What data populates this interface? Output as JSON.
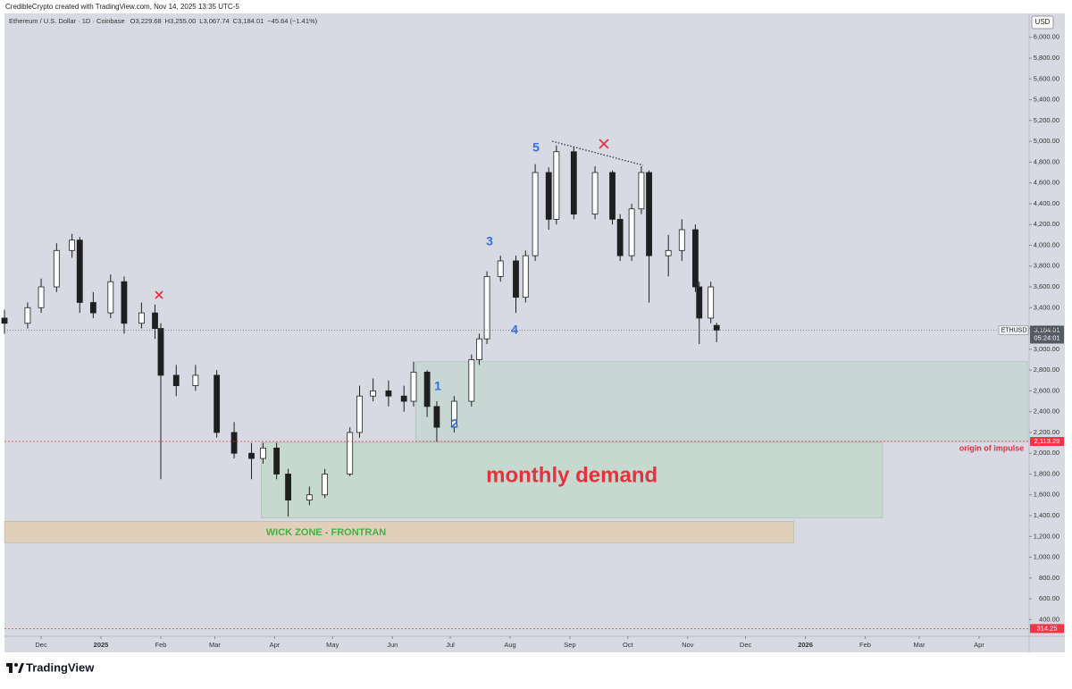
{
  "header": {
    "credit": "CredibleCrypto created with TradingView.com, Nov 14, 2025 13:35 UTC-5",
    "logo": "TradingView"
  },
  "chart_data": {
    "type": "candlestick",
    "title": "Ethereum / U.S. Dollar · 1D · Coinbase",
    "ohlc_legend": [
      "O3,229.68",
      "H3,255.00",
      "L3,067.74",
      "C3,184.01",
      "−45.64 (−1.41%)"
    ],
    "currency": "USD",
    "x": [
      -19,
      -7,
      0,
      8,
      16,
      20,
      27,
      36,
      43,
      52,
      59,
      62,
      70,
      80,
      91,
      100,
      109,
      115,
      122,
      128,
      139,
      147,
      160,
      165,
      172,
      180,
      188,
      193,
      200,
      205,
      214,
      223,
      227,
      231,
      238,
      246,
      251,
      256,
      263,
      267,
      276,
      287,
      296,
      300,
      306,
      311,
      315,
      325,
      332,
      339,
      341,
      347,
      350
    ],
    "open": [
      3300,
      3250,
      3400,
      3600,
      3950,
      4050,
      3450,
      3350,
      3650,
      3250,
      3350,
      3200,
      2750,
      2650,
      2750,
      2200,
      2000,
      1950,
      2050,
      1800,
      1550,
      1600,
      1800,
      2200,
      2550,
      2600,
      2550,
      2500,
      2780,
      2450,
      2250,
      2500,
      2900,
      3100,
      3700,
      3850,
      3500,
      3900,
      4700,
      4250,
      4900,
      4300,
      4700,
      4250,
      3900,
      4350,
      4700,
      3900,
      3950,
      4150,
      3600,
      3300,
      3229.68
    ],
    "high": [
      3380,
      3450,
      3680,
      4020,
      4110,
      4080,
      3550,
      3720,
      3700,
      3450,
      3430,
      3250,
      2850,
      2850,
      2800,
      2300,
      2100,
      2100,
      2100,
      1850,
      1680,
      1850,
      2250,
      2650,
      2720,
      2700,
      2650,
      2880,
      2800,
      2500,
      2550,
      2950,
      3150,
      3750,
      3900,
      3900,
      3950,
      4780,
      4750,
      4960,
      4950,
      4760,
      4720,
      4300,
      4400,
      4760,
      4720,
      4100,
      4250,
      4200,
      3650,
      3650,
      3255
    ],
    "low": [
      3150,
      3200,
      3350,
      3550,
      3880,
      3350,
      3300,
      3300,
      3150,
      3200,
      3100,
      1750,
      2550,
      2600,
      2150,
      1950,
      1750,
      1900,
      1750,
      1390,
      1500,
      1570,
      1780,
      2150,
      2500,
      2450,
      2400,
      2450,
      2350,
      2110,
      2200,
      2450,
      2850,
      3050,
      3650,
      3350,
      3450,
      3850,
      4150,
      4200,
      4250,
      4250,
      4200,
      3850,
      3850,
      4300,
      3450,
      3700,
      3850,
      3550,
      3050,
      3250,
      3067.74
    ],
    "close": [
      3250,
      3400,
      3600,
      3950,
      4050,
      3450,
      3350,
      3650,
      3250,
      3350,
      3200,
      2750,
      2650,
      2750,
      2200,
      2000,
      1950,
      2050,
      1800,
      1550,
      1600,
      1800,
      2200,
      2550,
      2600,
      2550,
      2500,
      2780,
      2450,
      2250,
      2500,
      2900,
      3100,
      3700,
      3850,
      3500,
      3900,
      4700,
      4250,
      4900,
      4300,
      4700,
      4250,
      3900,
      4350,
      4700,
      3900,
      3950,
      4150,
      3600,
      3300,
      3600,
      3184.01
    ],
    "up_color": "#ffffff",
    "down_color": "#1f1f1f",
    "xlim": [
      -19,
      511
    ],
    "xticks": [
      {
        "value": 0,
        "label": "Dec"
      },
      {
        "value": 31,
        "label": "2025"
      },
      {
        "value": 62,
        "label": "Feb"
      },
      {
        "value": 90,
        "label": "Mar"
      },
      {
        "value": 121,
        "label": "Apr"
      },
      {
        "value": 151,
        "label": "May"
      },
      {
        "value": 182,
        "label": "Jun"
      },
      {
        "value": 212,
        "label": "Jul"
      },
      {
        "value": 243,
        "label": "Aug"
      },
      {
        "value": 274,
        "label": "Sep"
      },
      {
        "value": 304,
        "label": "Oct"
      },
      {
        "value": 335,
        "label": "Nov"
      },
      {
        "value": 365,
        "label": "Dec"
      },
      {
        "value": 396,
        "label": "2026"
      },
      {
        "value": 427,
        "label": "Feb"
      },
      {
        "value": 455,
        "label": "Mar"
      },
      {
        "value": 486,
        "label": "Apr"
      }
    ],
    "ylim": [
      240,
      6230
    ],
    "yticks": [
      {
        "value": 400,
        "label": "400.00"
      },
      {
        "value": 600,
        "label": "600.00"
      },
      {
        "value": 800,
        "label": "800.00"
      },
      {
        "value": 1000,
        "label": "1,000.00"
      },
      {
        "value": 1200,
        "label": "1,200.00"
      },
      {
        "value": 1400,
        "label": "1,400.00"
      },
      {
        "value": 1600,
        "label": "1,600.00"
      },
      {
        "value": 1800,
        "label": "1,800.00"
      },
      {
        "value": 2000,
        "label": "2,000.00"
      },
      {
        "value": 2200,
        "label": "2,200.00"
      },
      {
        "value": 2400,
        "label": "2,400.00"
      },
      {
        "value": 2600,
        "label": "2,600.00"
      },
      {
        "value": 2800,
        "label": "2,800.00"
      },
      {
        "value": 3000,
        "label": "3,000.00"
      },
      {
        "value": 3200,
        "label": "3,200.00"
      },
      {
        "value": 3400,
        "label": "3,400.00"
      },
      {
        "value": 3600,
        "label": "3,600.00"
      },
      {
        "value": 3800,
        "label": "3,800.00"
      },
      {
        "value": 4000,
        "label": "4,000.00"
      },
      {
        "value": 4200,
        "label": "4,200.00"
      },
      {
        "value": 4400,
        "label": "4,400.00"
      },
      {
        "value": 4600,
        "label": "4,600.00"
      },
      {
        "value": 4800,
        "label": "4,800.00"
      },
      {
        "value": 5000,
        "label": "5,000.00"
      },
      {
        "value": 5200,
        "label": "5,200.00"
      },
      {
        "value": 5400,
        "label": "5,400.00"
      },
      {
        "value": 5600,
        "label": "5,600.00"
      },
      {
        "value": 5800,
        "label": "5,800.00"
      },
      {
        "value": 6000,
        "label": "6,000.00"
      }
    ],
    "price_lines": [
      {
        "name": "ETHUSD",
        "value": 3184.01,
        "label": "3,184.01",
        "countdown": "05:24:01",
        "color": "#555a66"
      },
      {
        "value": 2113.29,
        "label": "2,113.29",
        "color": "#f23645"
      },
      {
        "value": 314.25,
        "label": "314.25",
        "color": "#f23645"
      }
    ],
    "zones": [
      {
        "label": "origin of impulse",
        "x": [
          194,
          511
        ],
        "y": [
          2113.29,
          2880
        ],
        "color": "#c6d6d0",
        "label_color": "#e8303f"
      },
      {
        "label": "monthly demand",
        "x": [
          114,
          436
        ],
        "y": [
          1380,
          2105
        ],
        "color": "#c2d8cb",
        "label_color": "#e8303f"
      },
      {
        "label": "WICK ZONE - FRONTRAN",
        "x": [
          -19,
          390
        ],
        "y": [
          1140,
          1345
        ],
        "color": "#e2cdb2",
        "label_color": "#45b045"
      }
    ],
    "waves": [
      "1",
      "2",
      "3",
      "4",
      "5"
    ]
  }
}
